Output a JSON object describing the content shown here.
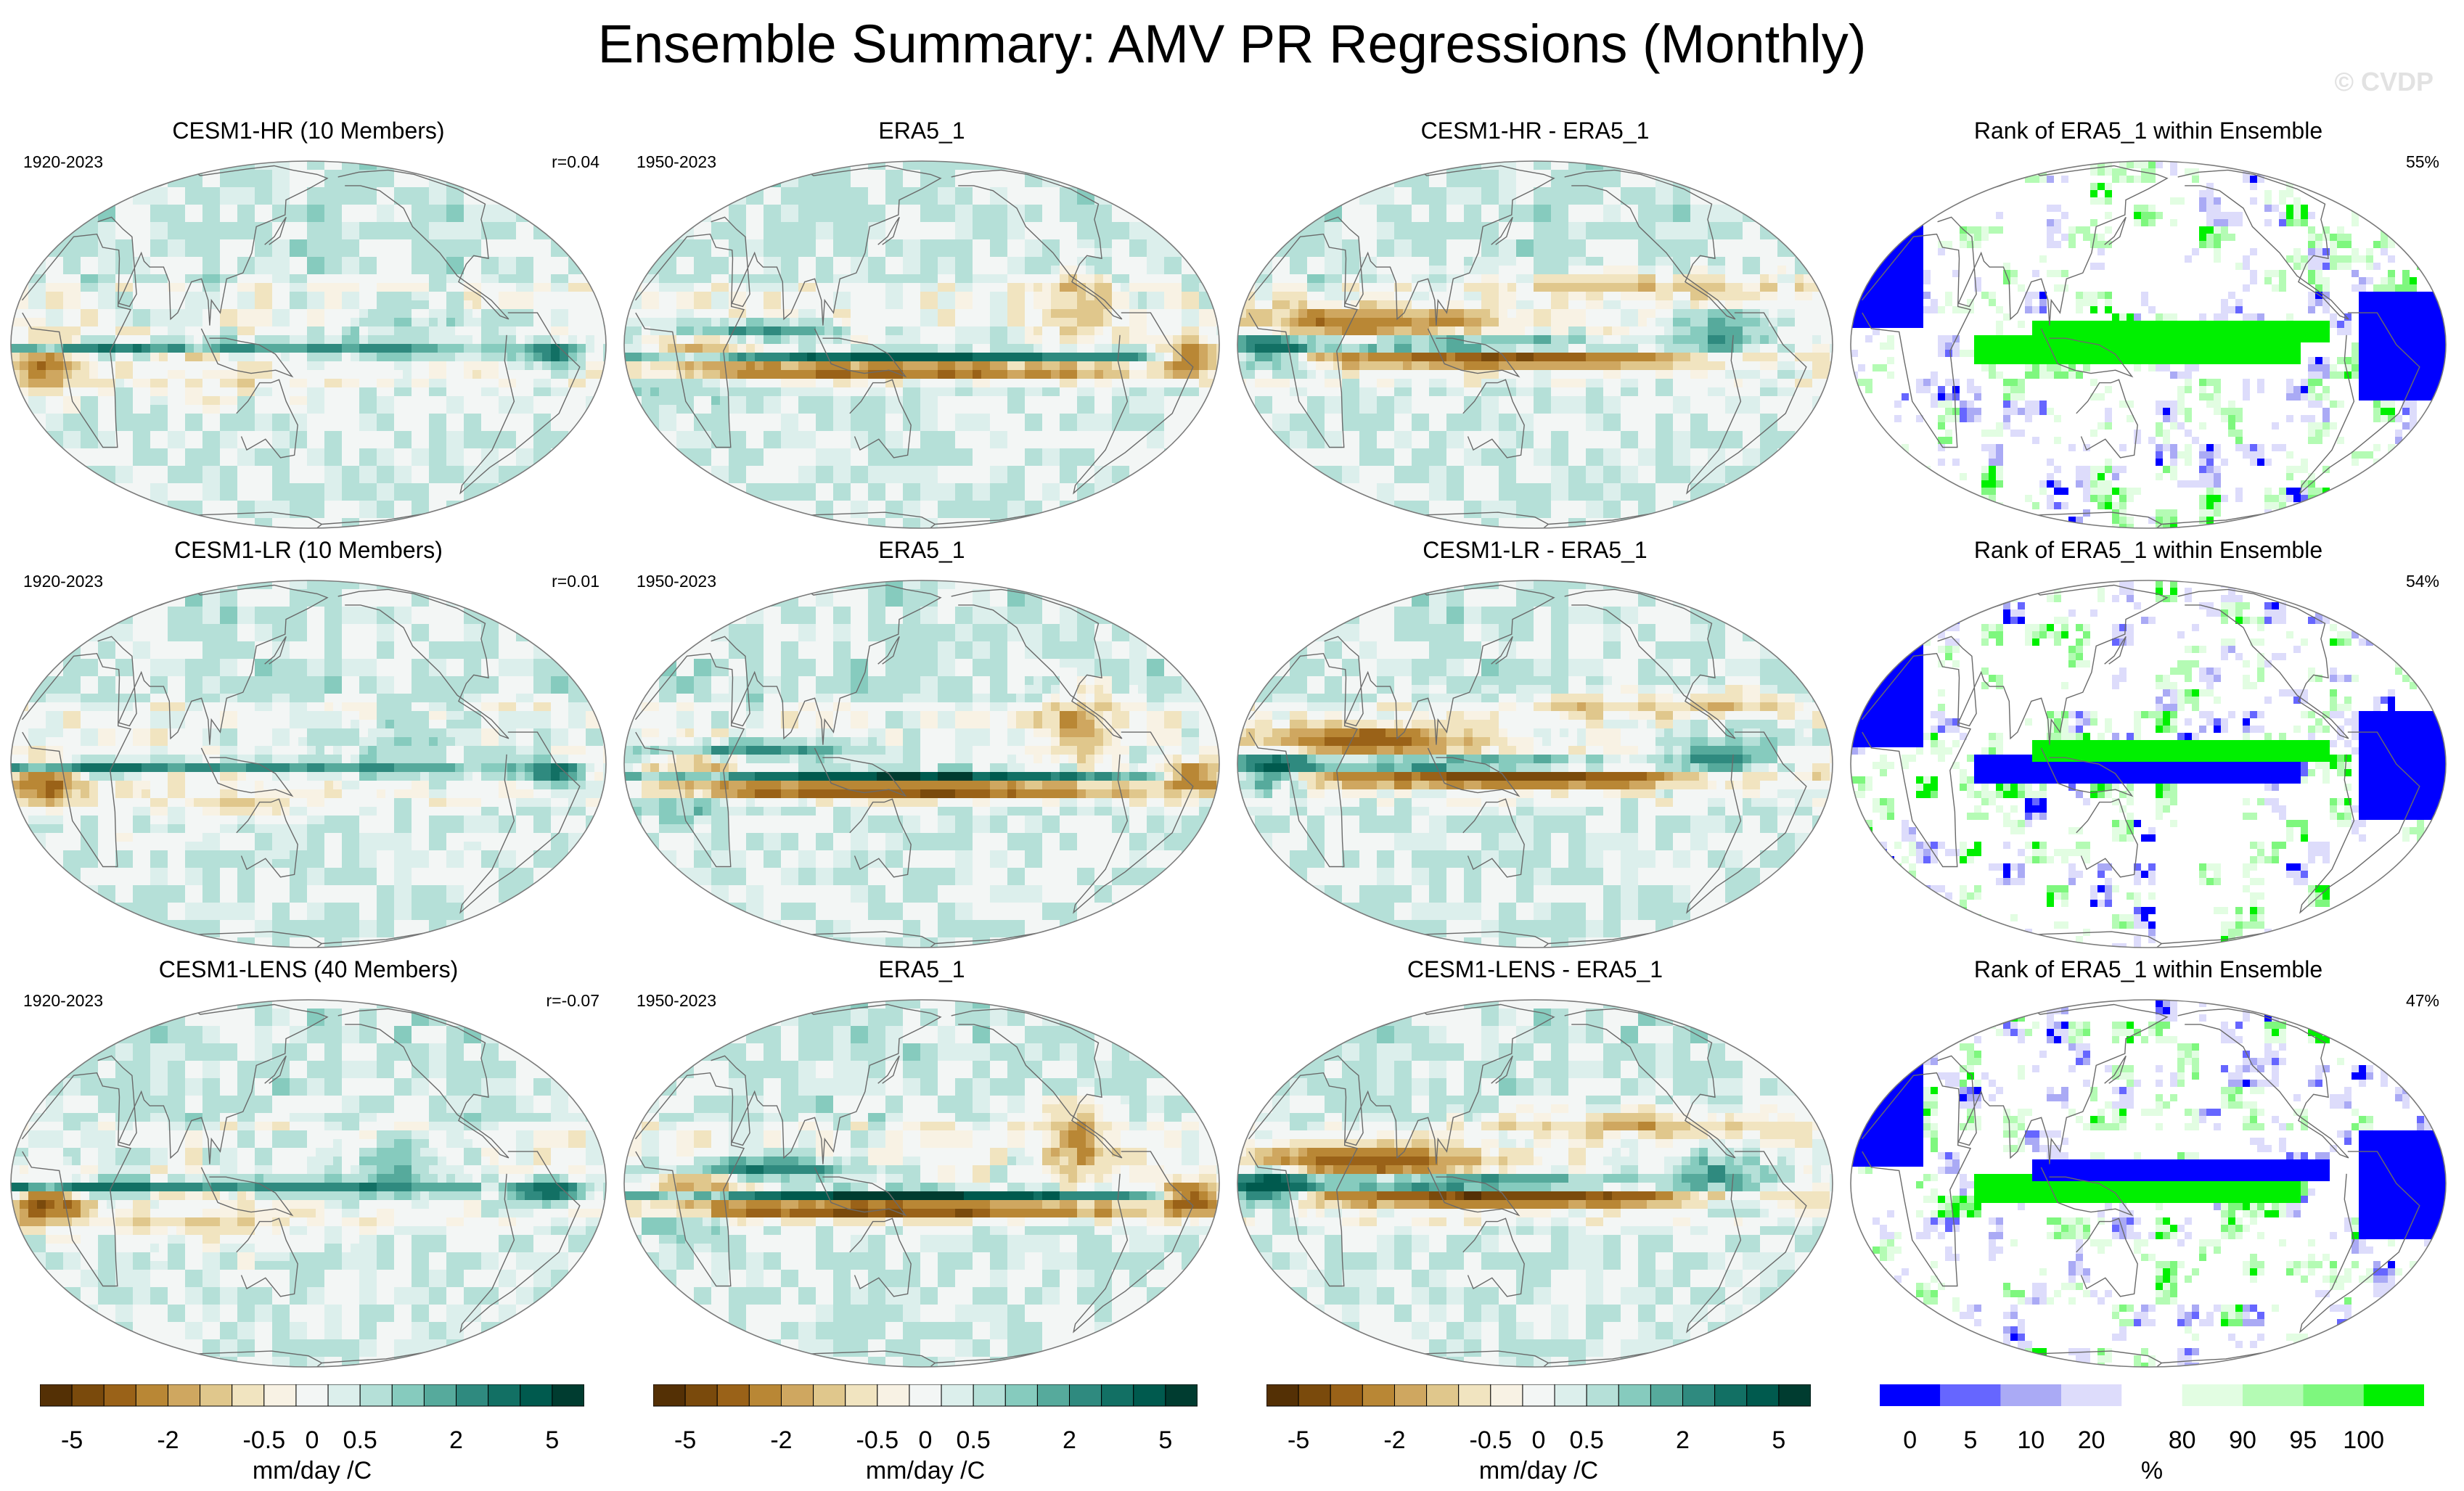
{
  "title": "Ensemble Summary: AMV PR Regressions (Monthly)",
  "watermark": "© CVDP",
  "colors": {
    "brown_teal": [
      "#543005",
      "#7a4a0c",
      "#9a6218",
      "#b98735",
      "#cfa760",
      "#e0c78c",
      "#f1e4c0",
      "#f8f2e4",
      "#f3f6f5",
      "#dcefec",
      "#b5e0d8",
      "#86cbbe",
      "#56aa9c",
      "#2f8a7f",
      "#127064",
      "#005a4e",
      "#003c30"
    ],
    "rank": [
      "#0000ff",
      "#6666ff",
      "#aaaaf5",
      "#dddcfb",
      "#ffffff",
      "#e2fde2",
      "#b4fbb4",
      "#7ef77e",
      "#00f000"
    ]
  },
  "rows": [
    {
      "ensemble": {
        "title": "CESM1-HR (10 Members)",
        "period": "1920-2023",
        "corr": "r=0.04"
      },
      "obs": {
        "title": "ERA5_1",
        "period": "1950-2023"
      },
      "diff": {
        "title": "CESM1-HR - ERA5_1"
      },
      "rank": {
        "title": "Rank of ERA5_1 within Ensemble",
        "pct": "55%"
      }
    },
    {
      "ensemble": {
        "title": "CESM1-LR (10 Members)",
        "period": "1920-2023",
        "corr": "r=0.01"
      },
      "obs": {
        "title": "ERA5_1",
        "period": "1950-2023"
      },
      "diff": {
        "title": "CESM1-LR - ERA5_1"
      },
      "rank": {
        "title": "Rank of ERA5_1 within Ensemble",
        "pct": "54%"
      }
    },
    {
      "ensemble": {
        "title": "CESM1-LENS (40 Members)",
        "period": "1920-2023",
        "corr": "r=-0.07"
      },
      "obs": {
        "title": "ERA5_1",
        "period": "1950-2023"
      },
      "diff": {
        "title": "CESM1-LENS - ERA5_1"
      },
      "rank": {
        "title": "Rank of ERA5_1 within Ensemble",
        "pct": "47%"
      }
    }
  ],
  "colorbars": {
    "regression": {
      "ticks": [
        "-5",
        "-2",
        "-0.5",
        "0",
        "0.5",
        "2",
        "5"
      ],
      "unit": "mm/day /C"
    },
    "rank": {
      "ticks": [
        "0",
        "5",
        "10",
        "20",
        "80",
        "90",
        "95",
        "100"
      ],
      "unit": "%"
    }
  }
}
